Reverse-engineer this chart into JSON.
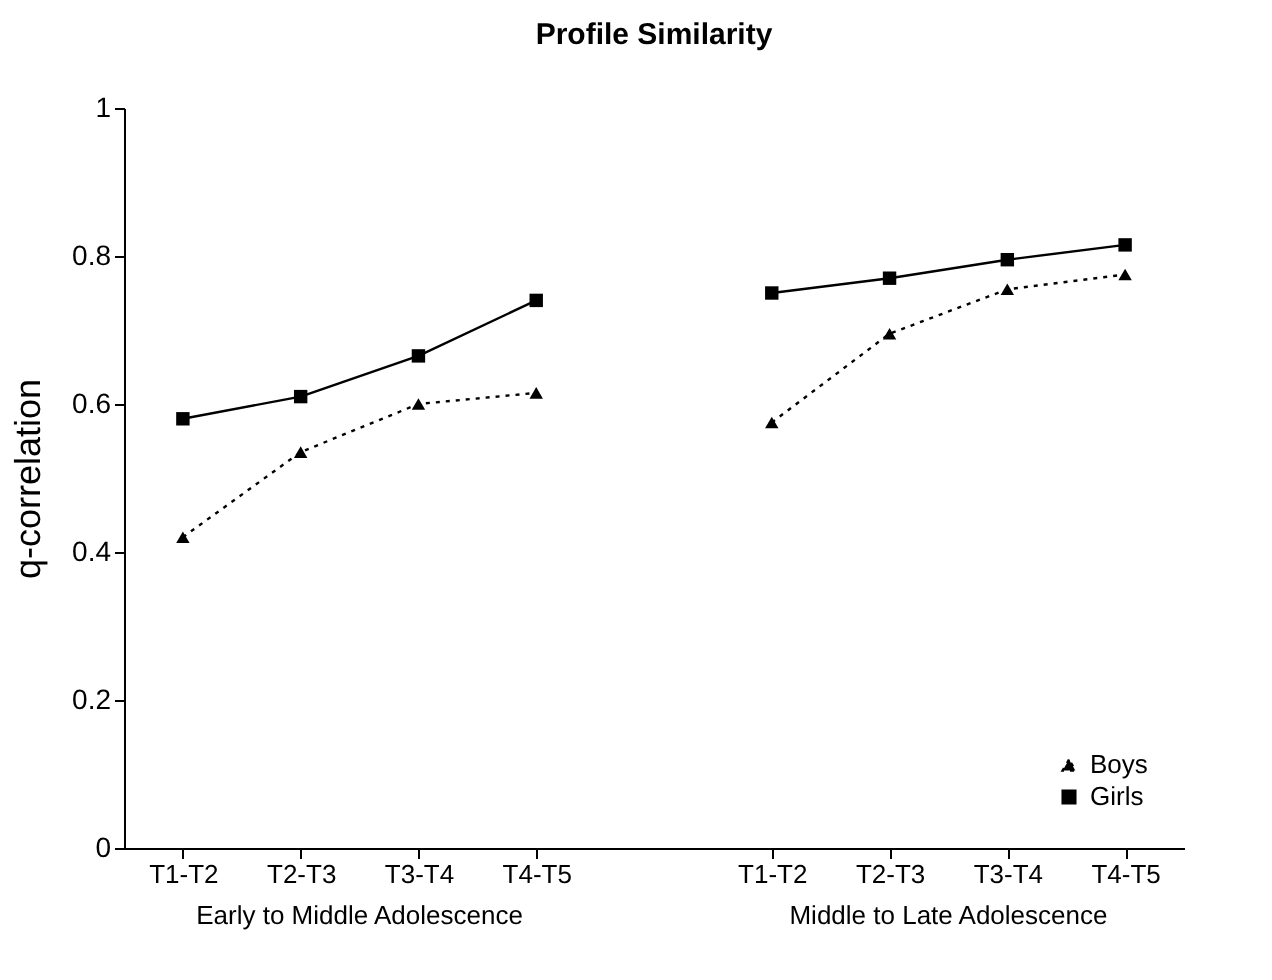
{
  "chart_data": {
    "type": "line",
    "title": "Profile Similarity",
    "ylabel": "q-correlation",
    "categories": [
      "T1-T2",
      "T2-T3",
      "T3-T4",
      "T4-T5",
      null,
      "T1-T2",
      "T2-T3",
      "T3-T4",
      "T4-T5"
    ],
    "series": [
      {
        "name": "Boys",
        "color": "#000000",
        "marker": "triangle",
        "line_style": "dotted",
        "values": [
          0.42,
          0.535,
          0.6,
          0.615,
          null,
          0.575,
          0.695,
          0.755,
          0.775
        ]
      },
      {
        "name": "Girls",
        "color": "#000000",
        "marker": "square",
        "line_style": "solid",
        "values": [
          0.58,
          0.61,
          0.665,
          0.74,
          null,
          0.75,
          0.77,
          0.795,
          0.815
        ]
      }
    ],
    "ylim": [
      0,
      1
    ],
    "yticks": [
      0,
      0.2,
      0.4,
      0.6,
      0.8,
      1
    ],
    "grid": false,
    "legend": "bottom right",
    "annotations": [
      "Early to Middle Adolescence",
      "Middle to Late Adolescence"
    ]
  }
}
